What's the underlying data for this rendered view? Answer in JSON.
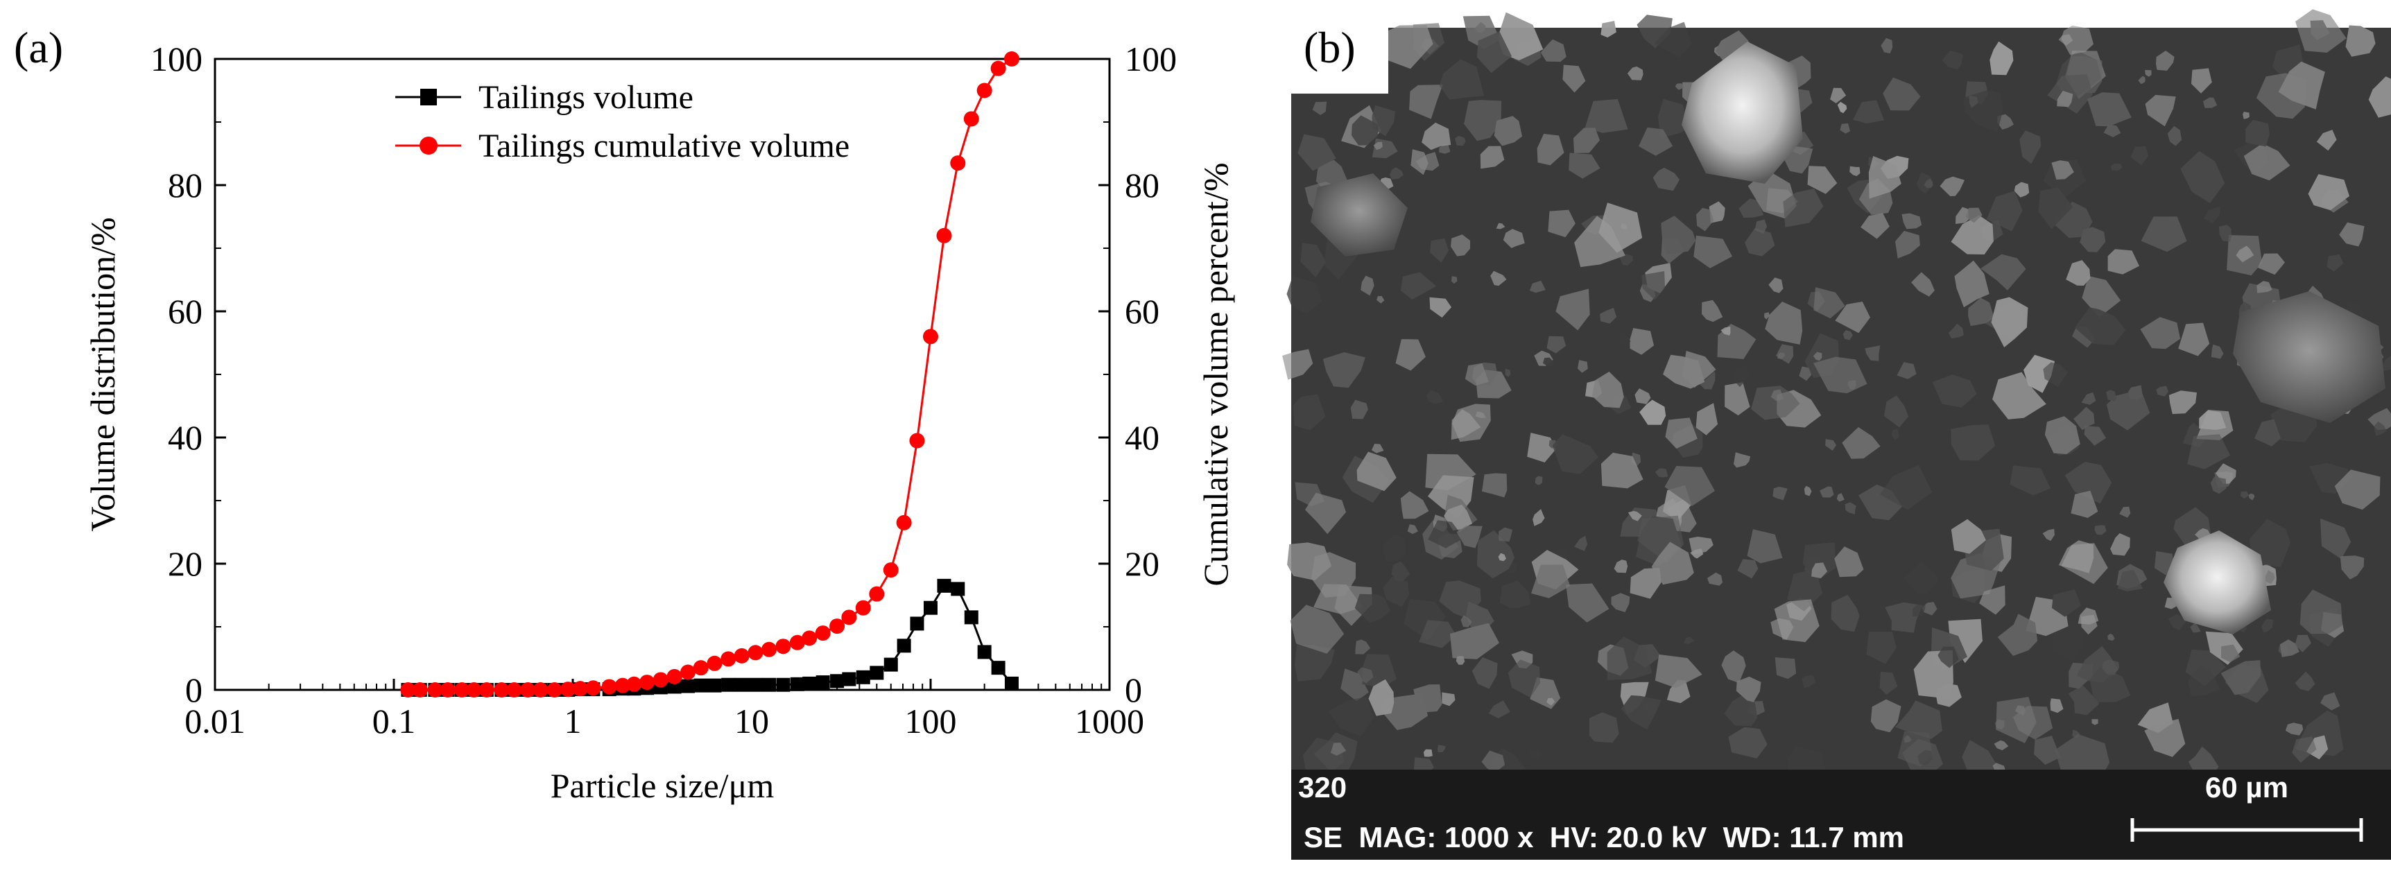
{
  "panel_a_label": "(a)",
  "panel_b_label": "(b)",
  "chart_data": {
    "type": "line",
    "xscale": "log",
    "xlim": [
      0.01,
      1000
    ],
    "ylim": [
      0,
      100
    ],
    "y2lim": [
      0,
      100
    ],
    "xticks": [
      0.01,
      0.1,
      1,
      10,
      100,
      1000
    ],
    "xtick_labels": [
      "0.01",
      "0.1",
      "1",
      "10",
      "100",
      "1000"
    ],
    "yticks": [
      0,
      20,
      40,
      60,
      80,
      100
    ],
    "ytick_labels": [
      "0",
      "20",
      "40",
      "60",
      "80",
      "100"
    ],
    "y2tick_labels": [
      "0",
      "20",
      "40",
      "60",
      "80",
      "100"
    ],
    "xlabel": "Particle size/μm",
    "ylabel": "Volume distribution/%",
    "y2label": "Cumulative volume percent/%",
    "legend_position": "top-center",
    "series": [
      {
        "name": "Tailings volume",
        "axis": "left",
        "color": "#000000",
        "marker": "square",
        "x": [
          0.12,
          0.14,
          0.17,
          0.2,
          0.24,
          0.28,
          0.33,
          0.4,
          0.47,
          0.56,
          0.66,
          0.79,
          0.94,
          1.1,
          1.3,
          1.6,
          1.9,
          2.2,
          2.6,
          3.1,
          3.7,
          4.4,
          5.2,
          6.2,
          7.4,
          8.8,
          10.5,
          12.5,
          15,
          18,
          21,
          25,
          30,
          35,
          42,
          50,
          60,
          71,
          84,
          100,
          119,
          142,
          169,
          200,
          239,
          284
        ],
        "values": [
          0,
          0,
          0,
          0,
          0,
          0,
          0,
          0,
          0,
          0,
          0,
          0,
          0,
          0.1,
          0.1,
          0.1,
          0.2,
          0.2,
          0.3,
          0.4,
          0.5,
          0.6,
          0.7,
          0.7,
          0.8,
          0.8,
          0.8,
          0.8,
          0.8,
          0.9,
          1.0,
          1.2,
          1.4,
          1.7,
          2.0,
          2.7,
          4.0,
          7.0,
          10.5,
          13.0,
          16.5,
          16.0,
          11.5,
          6.0,
          3.5,
          1.0
        ]
      },
      {
        "name": "Tailings cumulative volume",
        "axis": "right",
        "color": "#ff0000",
        "marker": "circle",
        "x": [
          0.12,
          0.14,
          0.17,
          0.2,
          0.24,
          0.28,
          0.33,
          0.4,
          0.47,
          0.56,
          0.66,
          0.79,
          0.94,
          1.1,
          1.3,
          1.6,
          1.9,
          2.2,
          2.6,
          3.1,
          3.7,
          4.4,
          5.2,
          6.2,
          7.4,
          8.8,
          10.5,
          12.5,
          15,
          18,
          21,
          25,
          30,
          35,
          42,
          50,
          60,
          71,
          84,
          100,
          119,
          142,
          169,
          200,
          239,
          284
        ],
        "values": [
          0,
          0,
          0,
          0,
          0,
          0,
          0,
          0,
          0,
          0,
          0,
          0,
          0.1,
          0.2,
          0.3,
          0.5,
          0.7,
          0.9,
          1.2,
          1.6,
          2.1,
          2.8,
          3.5,
          4.2,
          4.9,
          5.4,
          5.9,
          6.4,
          6.9,
          7.5,
          8.2,
          9.0,
          10.1,
          11.5,
          13.0,
          15.2,
          19.0,
          26.5,
          39.5,
          56.0,
          72.0,
          83.5,
          90.5,
          95.0,
          98.5,
          100
        ]
      }
    ]
  },
  "sem": {
    "sample_id": "320",
    "scale_label": "60 µm",
    "info_line": "SE  MAG: 1000 x  HV: 20.0 kV  WD: 11.7 mm"
  }
}
